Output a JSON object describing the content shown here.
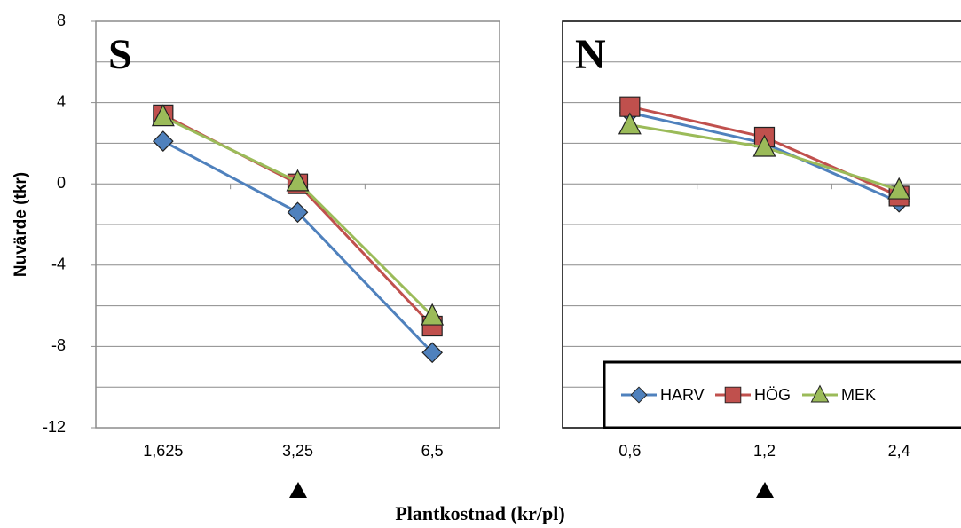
{
  "chart_data": [
    {
      "type": "line",
      "title": "S",
      "categories": [
        "1,625",
        "3,25",
        "6,5"
      ],
      "series": [
        {
          "name": "HARV",
          "color": "#4f81bd",
          "marker": "diamond",
          "values": [
            2.1,
            -1.4,
            -8.3
          ]
        },
        {
          "name": "HÖG",
          "color": "#c0504d",
          "marker": "square",
          "values": [
            3.4,
            0.0,
            -7.0
          ]
        },
        {
          "name": "MEK",
          "color": "#9bbb59",
          "marker": "triangle",
          "values": [
            3.3,
            0.1,
            -6.5
          ]
        }
      ],
      "ylim": [
        -12,
        8
      ],
      "yticks": [
        8,
        4,
        0,
        -4,
        -8,
        -12
      ],
      "minor_yticks": [
        6,
        2,
        -2,
        -6,
        -10
      ],
      "grid": true
    },
    {
      "type": "line",
      "title": "N",
      "categories": [
        "0,6",
        "1,2",
        "2,4"
      ],
      "series": [
        {
          "name": "HARV",
          "color": "#4f81bd",
          "marker": "diamond",
          "values": [
            3.5,
            2.0,
            -0.9
          ]
        },
        {
          "name": "HÖG",
          "color": "#c0504d",
          "marker": "square",
          "values": [
            3.8,
            2.3,
            -0.6
          ]
        },
        {
          "name": "MEK",
          "color": "#9bbb59",
          "marker": "triangle",
          "values": [
            2.9,
            1.8,
            -0.3
          ]
        }
      ],
      "ylim": [
        -12,
        8
      ],
      "yticks": [
        8,
        4,
        0,
        -4,
        -8,
        -12
      ],
      "minor_yticks": [
        6,
        2,
        -2,
        -6,
        -10
      ],
      "grid": true,
      "legend": "bottom-right"
    }
  ],
  "y_axis_label": "Nuvärde (tkr)",
  "x_axis_label": "Plantkostnad (kr/pl)"
}
